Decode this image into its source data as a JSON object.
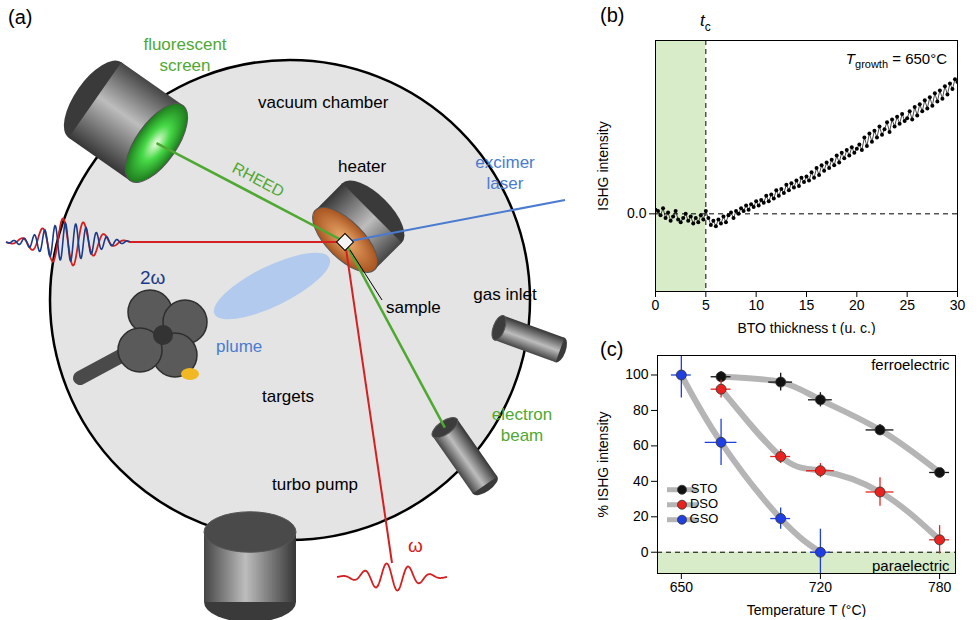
{
  "diagram": {
    "panel_label": "(a)",
    "labels": {
      "screen": {
        "text": "fluorescent screen",
        "color": "#4fa832"
      },
      "chamber": {
        "text": "vacuum chamber",
        "color": "#000000"
      },
      "heater": {
        "text": "heater",
        "color": "#000000"
      },
      "laser": {
        "text": "excimer laser",
        "color": "#4a7bd0"
      },
      "rheed": {
        "text": "RHEED",
        "color": "#4fa832"
      },
      "sample": {
        "text": "sample",
        "color": "#000000"
      },
      "plume": {
        "text": "plume",
        "color": "#4a7bd0"
      },
      "targets": {
        "text": "targets",
        "color": "#000000"
      },
      "gas": {
        "text": "gas inlet",
        "color": "#000000"
      },
      "ebeam": {
        "text": "electron beam",
        "color": "#4fa832"
      },
      "pump": {
        "text": "turbo pump",
        "color": "#000000"
      },
      "omega": {
        "text": "ω",
        "color": "#d42020"
      },
      "two_omega": {
        "text": "2ω",
        "color": "#1a3a8a"
      }
    }
  },
  "chart_data": [
    {
      "type": "line",
      "panel_label": "(b)",
      "x_label": "BTO thickness t (u. c.)",
      "y_label": "ISHG intensity",
      "color": "#000000",
      "marker": "circle",
      "line_style": "solid",
      "grid": false,
      "xlim": [
        0,
        30
      ],
      "xticks": [
        0,
        5,
        10,
        15,
        20,
        25,
        30
      ],
      "ylim": [
        -0.56,
        1.25
      ],
      "yticks": [
        0
      ],
      "hline": 0,
      "vline": {
        "x": 5,
        "label": "t",
        "label_subscript": "c"
      },
      "shaded_region": {
        "x": [
          0,
          5
        ],
        "color": "#d9ecc9"
      },
      "annotation": {
        "text": "T",
        "subscript": "growth",
        "suffix": " = 650°C"
      },
      "x": [
        0,
        0.25,
        0.5,
        0.75,
        1,
        1.25,
        1.5,
        1.75,
        2,
        2.25,
        2.5,
        2.75,
        3,
        3.25,
        3.5,
        3.75,
        4,
        4.25,
        4.5,
        4.75,
        5,
        5.25,
        5.5,
        5.75,
        6,
        6.25,
        6.5,
        6.75,
        7,
        7.25,
        7.5,
        7.75,
        8,
        8.25,
        8.5,
        8.75,
        9,
        9.25,
        9.5,
        9.75,
        10,
        10.25,
        10.5,
        10.75,
        11,
        11.25,
        11.5,
        11.75,
        12,
        12.25,
        12.5,
        12.75,
        13,
        13.25,
        13.5,
        13.75,
        14,
        14.25,
        14.5,
        14.75,
        15,
        15.25,
        15.5,
        15.75,
        16,
        16.25,
        16.5,
        16.75,
        17,
        17.25,
        17.5,
        17.75,
        18,
        18.25,
        18.5,
        18.75,
        19,
        19.25,
        19.5,
        19.75,
        20,
        20.25,
        20.5,
        20.75,
        21,
        21.25,
        21.5,
        21.75,
        22,
        22.25,
        22.5,
        22.75,
        23,
        23.25,
        23.5,
        23.75,
        24,
        24.25,
        24.5,
        24.75,
        25,
        25.25,
        25.5,
        25.75,
        26,
        26.25,
        26.5,
        26.75,
        27,
        27.25,
        27.5,
        27.75,
        28,
        28.25,
        28.5,
        28.75,
        29,
        29.25,
        29.5,
        29.75,
        30
      ],
      "values": [
        0.03,
        0.02,
        -0.01,
        0.04,
        -0.03,
        0.01,
        -0.05,
        -0.02,
        0.02,
        -0.04,
        -0.06,
        -0.03,
        0.0,
        -0.05,
        -0.02,
        -0.07,
        -0.03,
        -0.06,
        -0.01,
        -0.04,
        0.02,
        -0.03,
        -0.08,
        -0.05,
        -0.09,
        -0.04,
        -0.07,
        -0.02,
        -0.06,
        -0.01,
        0.01,
        -0.03,
        0.02,
        0.0,
        0.04,
        0.02,
        0.06,
        0.03,
        0.07,
        0.05,
        0.09,
        0.06,
        0.1,
        0.08,
        0.13,
        0.09,
        0.14,
        0.11,
        0.17,
        0.13,
        0.18,
        0.15,
        0.21,
        0.17,
        0.22,
        0.19,
        0.24,
        0.2,
        0.26,
        0.23,
        0.27,
        0.24,
        0.3,
        0.26,
        0.33,
        0.28,
        0.35,
        0.31,
        0.37,
        0.33,
        0.39,
        0.35,
        0.42,
        0.37,
        0.44,
        0.4,
        0.46,
        0.42,
        0.48,
        0.44,
        0.47,
        0.5,
        0.46,
        0.55,
        0.49,
        0.58,
        0.52,
        0.6,
        0.55,
        0.63,
        0.57,
        0.61,
        0.66,
        0.59,
        0.68,
        0.63,
        0.7,
        0.65,
        0.72,
        0.67,
        0.69,
        0.74,
        0.68,
        0.77,
        0.71,
        0.79,
        0.74,
        0.82,
        0.76,
        0.84,
        0.78,
        0.87,
        0.81,
        0.89,
        0.83,
        0.92,
        0.86,
        0.94,
        0.9,
        0.97,
        0.95
      ]
    },
    {
      "type": "line",
      "panel_label": "(c)",
      "x_label": "Temperature T (°C)",
      "y_label": "% ISHG intensity",
      "marker": "circle",
      "grid": false,
      "legend": "lower left",
      "xlim": [
        638,
        788
      ],
      "xticks": [
        650,
        720,
        780
      ],
      "ylim": [
        -12,
        111
      ],
      "yticks": [
        0,
        20,
        40,
        60,
        80,
        100
      ],
      "hline": 0,
      "shaded_region": {
        "y": [
          -12,
          0
        ],
        "color": "#d9ecc9"
      },
      "regions": {
        "above": "ferroelectric",
        "below": "paraelectric"
      },
      "series": [
        {
          "name": "STO",
          "color": "#111111",
          "x": [
            670,
            700,
            720,
            750,
            780
          ],
          "values": [
            99,
            96,
            86,
            69,
            45
          ],
          "x_errors": [
            5,
            6,
            6,
            7,
            5
          ],
          "y_errors": [
            3,
            5,
            4,
            3,
            2
          ]
        },
        {
          "name": "DSO",
          "color": "#e8231f",
          "x": [
            670,
            700,
            720,
            750,
            780
          ],
          "values": [
            92,
            54,
            46,
            34,
            7
          ],
          "x_errors": [
            5,
            5,
            7,
            7,
            5
          ],
          "y_errors": [
            5,
            4,
            4,
            8,
            8
          ]
        },
        {
          "name": "GSO",
          "color": "#1f3fe0",
          "x": [
            650,
            670,
            700,
            720
          ],
          "values": [
            100,
            62,
            19,
            0
          ],
          "x_errors": [
            5,
            8,
            5,
            5
          ],
          "y_errors": [
            13,
            13,
            6,
            13
          ]
        }
      ]
    }
  ]
}
